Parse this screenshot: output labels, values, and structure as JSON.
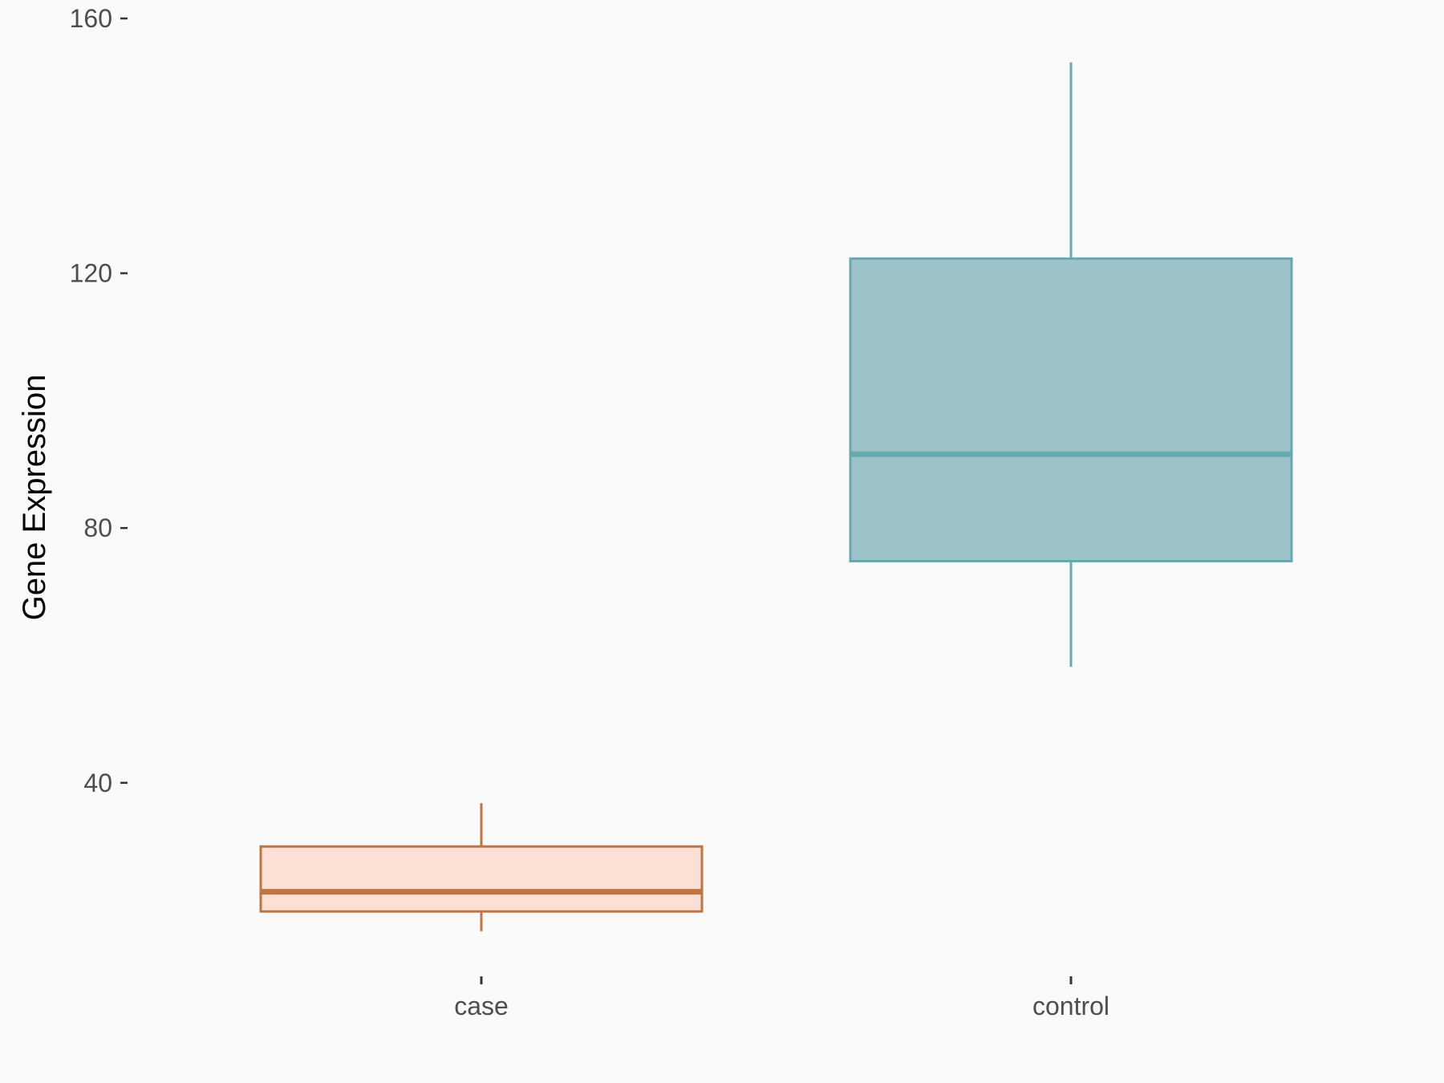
{
  "chart_data": {
    "type": "boxplot",
    "title": "",
    "xlabel": "",
    "ylabel": "Gene Expression",
    "ylim": [
      10,
      160
    ],
    "yticks": [
      40,
      80,
      120,
      160
    ],
    "grid": false,
    "legend": "none",
    "categories": [
      "case",
      "control"
    ],
    "boxes": [
      {
        "category": "case",
        "min": 16.7,
        "q1": 19.8,
        "median": 22.9,
        "q3": 30.0,
        "max": 36.8,
        "stroke": "#C07443",
        "fill": "#FDE0D5"
      },
      {
        "category": "control",
        "min": 58.2,
        "q1": 74.8,
        "median": 91.6,
        "q3": 122.3,
        "max": 153.1,
        "stroke": "#67A9B0",
        "fill": "#9CC4C8"
      }
    ]
  },
  "colors": {
    "background": "#FAFAFA",
    "tick_text": "#4D4D4D"
  }
}
